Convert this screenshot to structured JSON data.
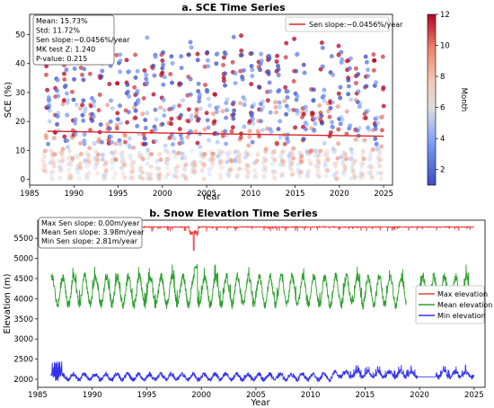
{
  "chart_data": [
    {
      "type": "scatter",
      "title": "a. SCE Time Series",
      "xlabel": "Year",
      "ylabel": "SCE (%)",
      "xlim": [
        1985,
        2026
      ],
      "ylim": [
        -2,
        57
      ],
      "x_ticks": [
        1985,
        1990,
        1995,
        2000,
        2005,
        2010,
        2015,
        2020,
        2025
      ],
      "y_ticks": [
        0,
        10,
        20,
        30,
        40,
        50
      ],
      "x_tick_labels": [
        "1985",
        "1990",
        "1995",
        "2000",
        "2005",
        "2010",
        "2015",
        "2020",
        "2025"
      ],
      "y_tick_labels": [
        "0",
        "10",
        "20",
        "30",
        "40",
        "50"
      ],
      "color_by": "month",
      "colorbar": {
        "label": "Month",
        "range": [
          1,
          12
        ],
        "ticks": [
          2,
          4,
          6,
          8,
          10,
          12
        ],
        "tick_labels": [
          "2",
          "4",
          "6",
          "8",
          "10",
          "12"
        ],
        "colormap": [
          "#3b4cc0",
          "#7b9ff9",
          "#c0d4f5",
          "#f2cbb7",
          "#ee8468",
          "#b40426"
        ]
      },
      "stats_box": [
        "Mean: 15.73%",
        "Std: 11.72%",
        "Sen slope:−0.0456%/year",
        "MK test Z: 1.240",
        "P-value: 0.215"
      ],
      "legend": {
        "placement": "top-right",
        "entries": [
          "Sen slope:−0.0456%/year"
        ]
      },
      "trend_line": {
        "x": [
          1987,
          2025
        ],
        "y": [
          16.6,
          14.9
        ],
        "color": "#d62728"
      },
      "series_pattern": {
        "description": "monthly observations 1986.5-2025; winter months high SCE (~15-50%), summer months low (~0-10%)",
        "x_range": [
          1986.5,
          2025
        ],
        "y_range": [
          0,
          50
        ]
      }
    },
    {
      "type": "line",
      "title": "b. Snow Elevation Time Series",
      "xlabel": "Year",
      "ylabel": "Elevation (m)",
      "xlim": [
        1985,
        2026
      ],
      "ylim": [
        1800,
        5950
      ],
      "x_ticks": [
        1985,
        1990,
        1995,
        2000,
        2005,
        2010,
        2015,
        2020,
        2025
      ],
      "y_ticks": [
        2000,
        2500,
        3000,
        3500,
        4000,
        4500,
        5000,
        5500
      ],
      "x_tick_labels": [
        "1985",
        "1990",
        "1995",
        "2000",
        "2005",
        "2010",
        "2015",
        "2020",
        "2025"
      ],
      "y_tick_labels": [
        "2000",
        "2500",
        "3000",
        "3500",
        "4000",
        "4500",
        "5000",
        "5500"
      ],
      "stats_box": [
        "Max Sen slope: 0.00m/year",
        "Mean Sen slope: 3.98m/year",
        "Min Sen slope: 2.81m/year"
      ],
      "legend": {
        "placement": "center-right"
      },
      "series": [
        {
          "name": "Max elevation",
          "color": "#e8474a",
          "level": 5780,
          "notable_dip": {
            "x": 1999.3,
            "y": 5200
          }
        },
        {
          "name": "Mean elevation",
          "color": "#2ca02c",
          "min": 3650,
          "max": 4850,
          "gap": [
            2018.8,
            2019.7
          ]
        },
        {
          "name": "Min elevation",
          "color": "#3333ee",
          "min": 1950,
          "max": 2450,
          "gap": [
            2019.8,
            2021.5
          ]
        }
      ]
    }
  ]
}
